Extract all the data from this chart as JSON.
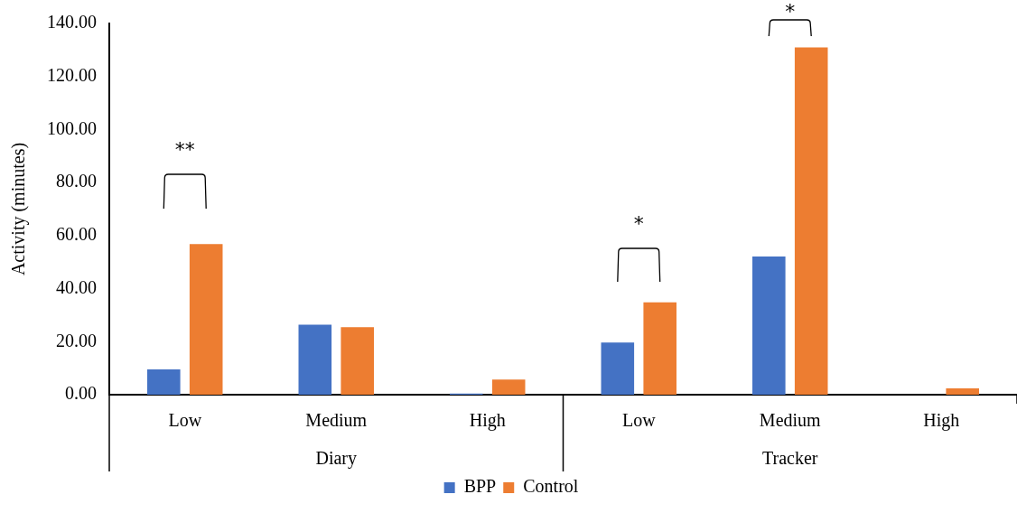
{
  "chart_data": {
    "type": "bar",
    "ylabel": "Activity (minutes)",
    "categories": [
      "Low",
      "Medium",
      "High",
      "Low",
      "Medium",
      "High"
    ],
    "series": [
      {
        "name": "BPP",
        "color": "#4472c4",
        "values": [
          9.5,
          26.4,
          0.4,
          19.7,
          52.1,
          0
        ]
      },
      {
        "name": "Control",
        "color": "#ed7d31",
        "values": [
          56.8,
          25.5,
          5.7,
          34.8,
          131.0,
          2.4
        ]
      }
    ],
    "ylim": [
      0,
      140
    ],
    "yticks": [
      {
        "value": 0,
        "label": "0.00"
      },
      {
        "value": 20,
        "label": "20.00"
      },
      {
        "value": 40,
        "label": "40.00"
      },
      {
        "value": 60,
        "label": "60.00"
      },
      {
        "value": 80,
        "label": "80.00"
      },
      {
        "value": 100,
        "label": "100.00"
      },
      {
        "value": 120,
        "label": "120.00"
      },
      {
        "value": 140,
        "label": "140.00"
      }
    ],
    "grid": false,
    "legend": "bottom",
    "annotations": [
      "Diary",
      "Tracker",
      "**",
      "*",
      "*"
    ]
  }
}
